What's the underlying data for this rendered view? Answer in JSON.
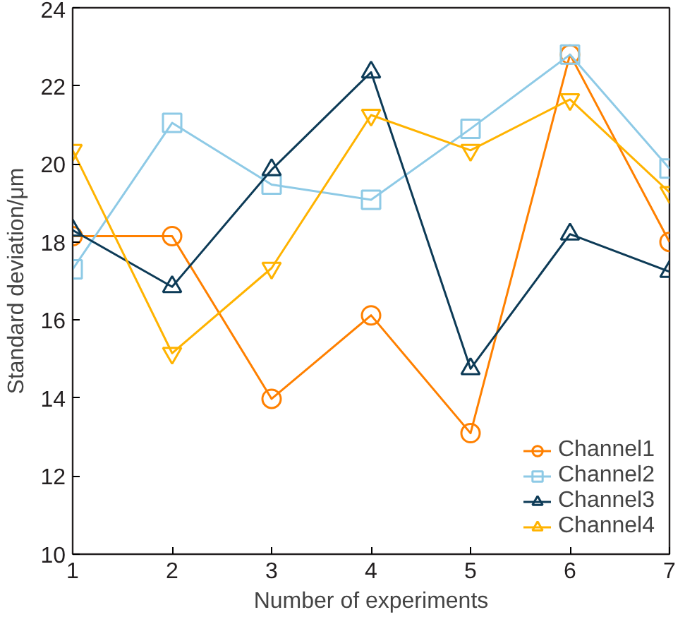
{
  "chart_data": {
    "type": "line",
    "xlabel": "Number of experiments",
    "ylabel": "Standard deviation/μm",
    "x": [
      1,
      2,
      3,
      4,
      5,
      6,
      7
    ],
    "xlim": [
      1,
      7
    ],
    "xticks": [
      1,
      2,
      3,
      4,
      5,
      6,
      7
    ],
    "ylim": [
      10,
      24
    ],
    "yticks": [
      10,
      12,
      14,
      16,
      18,
      20,
      22,
      24
    ],
    "grid": false,
    "legend": "bottom right",
    "series": [
      {
        "name": "Channel1",
        "color": "#ff8000",
        "marker": "circle",
        "values": [
          18.15,
          18.15,
          13.98,
          16.12,
          13.1,
          22.8,
          18.0
        ]
      },
      {
        "name": "Channel2",
        "color": "#8ecae6",
        "marker": "square",
        "values": [
          17.3,
          21.05,
          19.47,
          19.08,
          20.9,
          22.8,
          19.88
        ]
      },
      {
        "name": "Channel3",
        "color": "#0d3b57",
        "marker": "triangle",
        "values": [
          18.3,
          16.85,
          19.85,
          22.35,
          14.75,
          18.2,
          17.24
        ]
      },
      {
        "name": "Channel4",
        "color": "#ffb300",
        "marker": "triangle",
        "values": [
          20.35,
          15.15,
          17.33,
          21.25,
          20.35,
          21.65,
          19.27
        ]
      }
    ]
  }
}
